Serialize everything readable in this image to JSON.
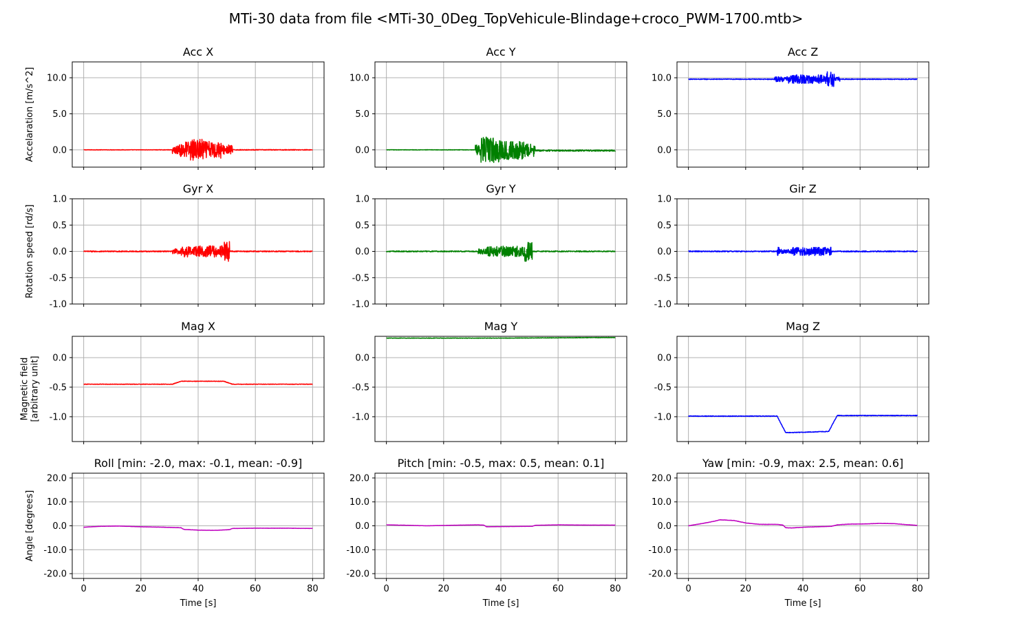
{
  "figure": {
    "suptitle": "MTi-30 data from file <MTi-30_0Deg_TopVehicule-Blindage+croco_PWM-1700.mtb>"
  },
  "colors": {
    "x": "#ff0000",
    "y": "#008000",
    "z": "#0000ff",
    "angle": "#bf00bf",
    "grid": "#b0b0b0"
  },
  "chart_data": [
    {
      "type": "line",
      "title": "Acc X",
      "ylabel": "Accelaration [m/s^2]",
      "xlabel": "",
      "xlim": [
        -4,
        84
      ],
      "ylim": [
        -2.4,
        12.2
      ],
      "yticks": [
        0,
        5,
        10
      ],
      "ytick_labels": [
        "0.0",
        "5.0",
        "10.0"
      ],
      "xticks": [
        0,
        20,
        40,
        60,
        80
      ],
      "xtick_labels": [],
      "grid": true,
      "color": "#ff0000",
      "series": [
        {
          "x": [
            0,
            31,
            35,
            41,
            47,
            52,
            80
          ],
          "y": [
            0.0,
            0.0,
            0.0,
            0.0,
            0.0,
            0.0,
            0.0
          ]
        }
      ],
      "noise": [
        [
          0,
          31,
          0.03
        ],
        [
          31,
          33,
          0.55
        ],
        [
          33,
          37,
          1.2
        ],
        [
          37,
          42,
          1.5
        ],
        [
          42,
          48,
          1.2
        ],
        [
          48,
          52,
          0.7
        ],
        [
          52,
          80,
          0.05
        ]
      ]
    },
    {
      "type": "line",
      "title": "Acc Y",
      "ylabel": "",
      "xlabel": "",
      "xlim": [
        -4,
        84
      ],
      "ylim": [
        -2.4,
        12.2
      ],
      "yticks": [
        0,
        5,
        10
      ],
      "ytick_labels": [
        "0.0",
        "5.0",
        "10.0"
      ],
      "xticks": [
        0,
        20,
        40,
        60,
        80
      ],
      "xtick_labels": [],
      "grid": true,
      "color": "#008000",
      "series": [
        {
          "x": [
            0,
            31,
            52,
            80
          ],
          "y": [
            0.0,
            0.0,
            -0.1,
            -0.1
          ]
        }
      ],
      "noise": [
        [
          0,
          31,
          0.03
        ],
        [
          31,
          33,
          0.7
        ],
        [
          33,
          40,
          1.8
        ],
        [
          40,
          48,
          1.3
        ],
        [
          48,
          52,
          0.9
        ],
        [
          52,
          80,
          0.1
        ]
      ]
    },
    {
      "type": "line",
      "title": "Acc Z",
      "ylabel": "",
      "xlabel": "",
      "xlim": [
        -4,
        84
      ],
      "ylim": [
        -2.4,
        12.2
      ],
      "yticks": [
        0,
        5,
        10
      ],
      "ytick_labels": [
        "0.0",
        "5.0",
        "10.0"
      ],
      "xticks": [
        0,
        20,
        40,
        60,
        80
      ],
      "xtick_labels": [],
      "grid": true,
      "color": "#0000ff",
      "series": [
        {
          "x": [
            0,
            30,
            52,
            80
          ],
          "y": [
            9.8,
            9.8,
            9.8,
            9.8
          ]
        }
      ],
      "noise": [
        [
          0,
          30,
          0.05
        ],
        [
          30,
          35,
          0.35
        ],
        [
          35,
          48,
          0.6
        ],
        [
          48,
          51,
          1.1
        ],
        [
          51,
          53,
          0.3
        ],
        [
          53,
          80,
          0.05
        ]
      ]
    },
    {
      "type": "line",
      "title": "Gyr X",
      "ylabel": "Rotation speed [rd/s]",
      "xlabel": "",
      "xlim": [
        -4,
        84
      ],
      "ylim": [
        -1.0,
        1.0
      ],
      "yticks": [
        -1,
        -0.5,
        0,
        0.5,
        1
      ],
      "ytick_labels": [
        "-1.0",
        "-0.5",
        "0.0",
        "0.5",
        "1.0"
      ],
      "xticks": [
        0,
        20,
        40,
        60,
        80
      ],
      "xtick_labels": [],
      "grid": true,
      "color": "#ff0000",
      "series": [
        {
          "x": [
            0,
            80
          ],
          "y": [
            0.0,
            0.0
          ]
        }
      ],
      "noise": [
        [
          0,
          31,
          0.01
        ],
        [
          31,
          34,
          0.05
        ],
        [
          34,
          49,
          0.11
        ],
        [
          49,
          51,
          0.2
        ],
        [
          51,
          80,
          0.01
        ]
      ]
    },
    {
      "type": "line",
      "title": "Gyr Y",
      "ylabel": "",
      "xlabel": "",
      "xlim": [
        -4,
        84
      ],
      "ylim": [
        -1.0,
        1.0
      ],
      "yticks": [
        -1,
        -0.5,
        0,
        0.5,
        1
      ],
      "ytick_labels": [
        "-1.0",
        "-0.5",
        "0.0",
        "0.5",
        "1.0"
      ],
      "xticks": [
        0,
        20,
        40,
        60,
        80
      ],
      "xtick_labels": [],
      "grid": true,
      "color": "#008000",
      "series": [
        {
          "x": [
            0,
            80
          ],
          "y": [
            0.0,
            0.0
          ]
        }
      ],
      "noise": [
        [
          0,
          32,
          0.01
        ],
        [
          32,
          35,
          0.05
        ],
        [
          35,
          48,
          0.1
        ],
        [
          48,
          51,
          0.2
        ],
        [
          51,
          80,
          0.01
        ]
      ]
    },
    {
      "type": "line",
      "title": "Gir Z",
      "ylabel": "",
      "xlabel": "",
      "xlim": [
        -4,
        84
      ],
      "ylim": [
        -1.0,
        1.0
      ],
      "yticks": [
        -1,
        -0.5,
        0,
        0.5,
        1
      ],
      "ytick_labels": [
        "-1.0",
        "-0.5",
        "0.0",
        "0.5",
        "1.0"
      ],
      "xticks": [
        0,
        20,
        40,
        60,
        80
      ],
      "xtick_labels": [],
      "grid": true,
      "color": "#0000ff",
      "series": [
        {
          "x": [
            0,
            80
          ],
          "y": [
            0.0,
            0.0
          ]
        }
      ],
      "noise": [
        [
          0,
          31,
          0.01
        ],
        [
          31,
          32,
          0.08
        ],
        [
          32,
          36,
          0.04
        ],
        [
          36,
          50,
          0.08
        ],
        [
          50,
          80,
          0.01
        ]
      ]
    },
    {
      "type": "line",
      "title": "Mag X",
      "ylabel": "Magnetic field\n[arbitrary unit]",
      "xlabel": "",
      "xlim": [
        -4,
        84
      ],
      "ylim": [
        -1.42,
        0.36
      ],
      "yticks": [
        -1,
        -0.5,
        0
      ],
      "ytick_labels": [
        "-1.0",
        "-0.5",
        "0.0"
      ],
      "xticks": [
        0,
        20,
        40,
        60,
        80
      ],
      "xtick_labels": [],
      "grid": true,
      "color": "#ff0000",
      "series": [
        {
          "x": [
            0,
            31,
            34,
            49,
            52,
            80
          ],
          "y": [
            -0.45,
            -0.45,
            -0.4,
            -0.4,
            -0.45,
            -0.45
          ]
        }
      ],
      "noise": [
        [
          0,
          80,
          0.004
        ]
      ]
    },
    {
      "type": "line",
      "title": "Mag Y",
      "ylabel": "",
      "xlabel": "",
      "xlim": [
        -4,
        84
      ],
      "ylim": [
        -1.42,
        0.36
      ],
      "yticks": [
        -1,
        -0.5,
        0
      ],
      "ytick_labels": [
        "-1.0",
        "-0.5",
        "0.0"
      ],
      "xticks": [
        0,
        20,
        40,
        60,
        80
      ],
      "xtick_labels": [],
      "grid": true,
      "color": "#008000",
      "series": [
        {
          "x": [
            0,
            40,
            80
          ],
          "y": [
            0.33,
            0.33,
            0.34
          ]
        }
      ],
      "noise": [
        [
          0,
          80,
          0.004
        ]
      ]
    },
    {
      "type": "line",
      "title": "Mag Z",
      "ylabel": "",
      "xlabel": "",
      "xlim": [
        -4,
        84
      ],
      "ylim": [
        -1.42,
        0.36
      ],
      "yticks": [
        -1,
        -0.5,
        0
      ],
      "ytick_labels": [
        "-1.0",
        "-0.5",
        "0.0"
      ],
      "xticks": [
        0,
        20,
        40,
        60,
        80
      ],
      "xtick_labels": [],
      "grid": true,
      "color": "#0000ff",
      "series": [
        {
          "x": [
            0,
            31,
            34,
            49,
            52,
            80
          ],
          "y": [
            -0.99,
            -0.99,
            -1.27,
            -1.25,
            -0.98,
            -0.98
          ]
        }
      ],
      "noise": [
        [
          0,
          80,
          0.005
        ]
      ]
    },
    {
      "type": "line",
      "title": "Roll [min: -2.0, max: -0.1, mean: -0.9]",
      "ylabel": "Angle [degrees]",
      "xlabel": "Time [s]",
      "xlim": [
        -4,
        84
      ],
      "ylim": [
        -22,
        22
      ],
      "yticks": [
        -20,
        -10,
        0,
        10,
        20
      ],
      "ytick_labels": [
        "-20.0",
        "-10.0",
        "0.0",
        "10.0",
        "20.0"
      ],
      "xticks": [
        0,
        20,
        40,
        60,
        80
      ],
      "xtick_labels": [
        "0",
        "20",
        "40",
        "60",
        "80"
      ],
      "grid": true,
      "color": "#bf00bf",
      "series": [
        {
          "x": [
            0,
            6,
            12,
            20,
            28,
            34,
            35,
            40,
            46,
            51,
            52,
            60,
            70,
            80
          ],
          "y": [
            -0.6,
            -0.2,
            -0.1,
            -0.4,
            -0.6,
            -0.8,
            -1.5,
            -1.8,
            -1.9,
            -1.6,
            -1.1,
            -1.0,
            -1.0,
            -1.1
          ]
        }
      ],
      "noise": [
        [
          0,
          80,
          0.05
        ]
      ]
    },
    {
      "type": "line",
      "title": "Pitch [min: -0.5, max: 0.5, mean: 0.1]",
      "ylabel": "",
      "xlabel": "Time [s]",
      "xlim": [
        -4,
        84
      ],
      "ylim": [
        -22,
        22
      ],
      "yticks": [
        -20,
        -10,
        0,
        10,
        20
      ],
      "ytick_labels": [
        "-20.0",
        "-10.0",
        "0.0",
        "10.0",
        "20.0"
      ],
      "xticks": [
        0,
        20,
        40,
        60,
        80
      ],
      "xtick_labels": [
        "0",
        "20",
        "40",
        "60",
        "80"
      ],
      "grid": true,
      "color": "#bf00bf",
      "series": [
        {
          "x": [
            0,
            8,
            14,
            22,
            32,
            34,
            35,
            42,
            51,
            52,
            60,
            70,
            80
          ],
          "y": [
            0.4,
            0.2,
            0.0,
            0.2,
            0.4,
            0.3,
            -0.4,
            -0.3,
            -0.2,
            0.2,
            0.4,
            0.3,
            0.3
          ]
        }
      ],
      "noise": [
        [
          0,
          80,
          0.04
        ]
      ]
    },
    {
      "type": "line",
      "title": "Yaw [min: -0.9, max: 2.5, mean: 0.6]",
      "ylabel": "",
      "xlabel": "Time [s]",
      "xlim": [
        -4,
        84
      ],
      "ylim": [
        -22,
        22
      ],
      "yticks": [
        -20,
        -10,
        0,
        10,
        20
      ],
      "ytick_labels": [
        "-20.0",
        "-10.0",
        "0.0",
        "10.0",
        "20.0"
      ],
      "xticks": [
        0,
        20,
        40,
        60,
        80
      ],
      "xtick_labels": [
        "0",
        "20",
        "40",
        "60",
        "80"
      ],
      "grid": true,
      "color": "#bf00bf",
      "series": [
        {
          "x": [
            0,
            5,
            9,
            11,
            13,
            16,
            20,
            25,
            31,
            33,
            34,
            36,
            40,
            45,
            50,
            52,
            56,
            62,
            67,
            72,
            76,
            80
          ],
          "y": [
            0.0,
            1.0,
            1.9,
            2.5,
            2.4,
            2.2,
            1.2,
            0.6,
            0.6,
            0.3,
            -0.8,
            -0.9,
            -0.6,
            -0.4,
            -0.2,
            0.4,
            0.7,
            0.8,
            1.0,
            0.9,
            0.5,
            0.2
          ]
        }
      ],
      "noise": [
        [
          0,
          80,
          0.06
        ]
      ]
    }
  ]
}
